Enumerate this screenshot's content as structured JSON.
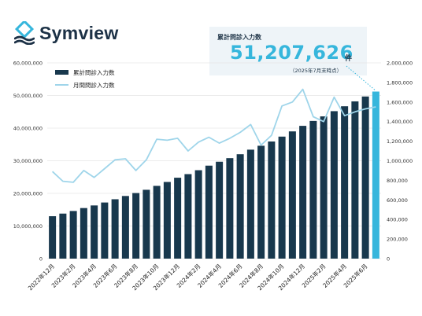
{
  "brand": {
    "name": "Symview",
    "logo_color": "#1c3146",
    "accent_color": "#36b6dc"
  },
  "callout": {
    "label": "累計問診入力数",
    "value": "51,207,626",
    "unit": "件",
    "date_note": "（2025年7月末時点）"
  },
  "chart_data": {
    "type": "bar",
    "categories": [
      "2022年12月",
      "2023年1月",
      "2023年2月",
      "2023年3月",
      "2023年4月",
      "2023年5月",
      "2023年6月",
      "2023年7月",
      "2023年8月",
      "2023年9月",
      "2023年10月",
      "2023年11月",
      "2023年12月",
      "2024年1月",
      "2024年2月",
      "2024年3月",
      "2024年4月",
      "2024年5月",
      "2024年6月",
      "2024年7月",
      "2024年8月",
      "2024年9月",
      "2024年10月",
      "2024年11月",
      "2024年12月",
      "2025年1月",
      "2025年2月",
      "2025年3月",
      "2025年4月",
      "2025年5月",
      "2025年6月",
      "2025年7月"
    ],
    "tick_labels": [
      "2022年12月",
      "2023年2月",
      "2023年4月",
      "2023年6月",
      "2023年8月",
      "2023年10月",
      "2023年12月",
      "2024年2月",
      "2024年4月",
      "2024年6月",
      "2024年8月",
      "2024年10月",
      "2024年12月",
      "2025年2月",
      "2025年4月",
      "2025年6月"
    ],
    "series": [
      {
        "name": "累計問診入力数",
        "type": "bar",
        "axis": "left",
        "color": "#18384d",
        "values": [
          13000000,
          13800000,
          14600000,
          15500000,
          16300000,
          17200000,
          18200000,
          19200000,
          20100000,
          21100000,
          22300000,
          23500000,
          24800000,
          25900000,
          27100000,
          28500000,
          29700000,
          30800000,
          32000000,
          33400000,
          34600000,
          35900000,
          37400000,
          39000000,
          40700000,
          42200000,
          43600000,
          45200000,
          46700000,
          48200000,
          49700000,
          51207626
        ]
      },
      {
        "name": "月間問診入力数",
        "type": "line",
        "axis": "right",
        "color": "#9fd5ea",
        "values": [
          890000,
          790000,
          780000,
          900000,
          830000,
          920000,
          1010000,
          1020000,
          900000,
          1010000,
          1220000,
          1210000,
          1230000,
          1100000,
          1190000,
          1240000,
          1180000,
          1230000,
          1290000,
          1370000,
          1160000,
          1260000,
          1560000,
          1600000,
          1730000,
          1450000,
          1400000,
          1650000,
          1460000,
          1500000,
          1530000,
          1550000
        ]
      }
    ],
    "left_axis": {
      "min": 0,
      "max": 60000000,
      "step": 10000000,
      "tick_labels": [
        "0",
        "10,000,000",
        "20,000,000",
        "30,000,000",
        "40,000,000",
        "50,000,000",
        "60,000,000"
      ]
    },
    "right_axis": {
      "min": 0,
      "max": 2000000,
      "step": 200000,
      "tick_labels": [
        "0",
        "200,000",
        "400,000",
        "600,000",
        "800,000",
        "1,000,000",
        "1,200,000",
        "1,400,000",
        "1,600,000",
        "1,800,000",
        "2,000,000"
      ]
    },
    "highlight_bar": {
      "index": 31,
      "color": "#36b6dc"
    },
    "legend_position": "top-left",
    "grid": true
  }
}
